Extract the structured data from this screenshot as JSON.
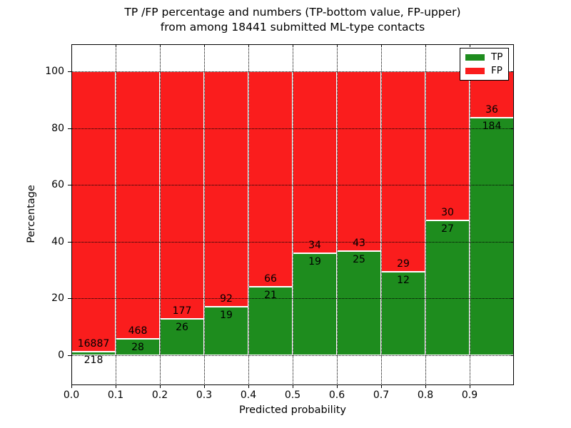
{
  "chart_data": {
    "type": "stacked_bar",
    "title": "TP /FP percentage and numbers (TP-bottom value, FP-upper)",
    "subtitle": "from among 18441 submitted ML-type contacts",
    "xlabel": "Predicted probability",
    "ylabel": "Percentage",
    "total_submitted": 18441,
    "bars_normalized_to": 100,
    "x_bin_starts": [
      0.0,
      0.1,
      0.2,
      0.3,
      0.4,
      0.5,
      0.6,
      0.7,
      0.8,
      0.9
    ],
    "bin_width": 0.1,
    "xlim": [
      0,
      1
    ],
    "ylim": [
      -10.6,
      109.6
    ],
    "xtick_values": [
      0.0,
      0.1,
      0.2,
      0.3,
      0.4,
      0.5,
      0.6,
      0.7,
      0.8,
      0.9
    ],
    "xtick_labels": [
      "0.0",
      "0.1",
      "0.2",
      "0.3",
      "0.4",
      "0.5",
      "0.6",
      "0.7",
      "0.8",
      "0.9"
    ],
    "ytick_values": [
      0,
      20,
      40,
      60,
      80,
      100
    ],
    "ytick_labels": [
      "0",
      "20",
      "40",
      "60",
      "80",
      "100"
    ],
    "grid": {
      "visible": true,
      "style": "dotted",
      "color": "#000000"
    },
    "series": [
      {
        "name": "TP",
        "color": "#1e8c1e",
        "values": [
          218,
          28,
          26,
          19,
          21,
          19,
          25,
          12,
          27,
          184
        ]
      },
      {
        "name": "FP",
        "color": "#fa1d1d",
        "values": [
          16887,
          468,
          177,
          92,
          66,
          34,
          43,
          29,
          30,
          36
        ]
      }
    ],
    "legend": {
      "position": "upper right",
      "entries": [
        {
          "label": "TP",
          "color": "#1e8c1e"
        },
        {
          "label": "FP",
          "color": "#fa1d1d"
        }
      ]
    }
  }
}
